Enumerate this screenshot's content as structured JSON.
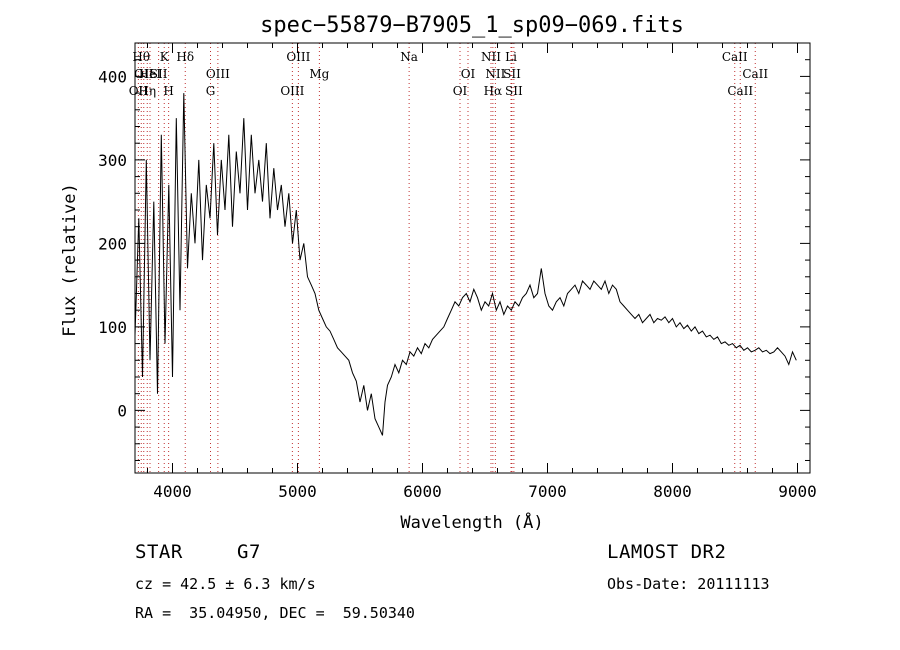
{
  "chart_data": {
    "type": "line",
    "title": "spec−55879−B7905_1_sp09−069.fits",
    "xlabel": "Wavelength (Å)",
    "ylabel": "Flux (relative)",
    "xlim": [
      3700,
      9100
    ],
    "ylim": [
      -75,
      440
    ],
    "x_ticks": [
      4000,
      5000,
      6000,
      7000,
      8000,
      9000
    ],
    "y_ticks": [
      0,
      100,
      200,
      300,
      400
    ],
    "grid": false,
    "series": [
      {
        "color": "#000000",
        "x": [
          3700,
          3730,
          3760,
          3790,
          3820,
          3850,
          3880,
          3910,
          3940,
          3970,
          4000,
          4030,
          4060,
          4090,
          4120,
          4150,
          4180,
          4210,
          4240,
          4270,
          4300,
          4330,
          4360,
          4390,
          4420,
          4450,
          4480,
          4510,
          4540,
          4570,
          4600,
          4630,
          4660,
          4690,
          4720,
          4750,
          4780,
          4810,
          4840,
          4870,
          4900,
          4930,
          4960,
          4990,
          5020,
          5050,
          5080,
          5110,
          5140,
          5170,
          5200,
          5230,
          5260,
          5290,
          5320,
          5350,
          5380,
          5410,
          5440,
          5470,
          5500,
          5530,
          5560,
          5590,
          5620,
          5650,
          5680,
          5700,
          5720,
          5750,
          5780,
          5810,
          5840,
          5870,
          5900,
          5930,
          5960,
          5990,
          6020,
          6050,
          6080,
          6110,
          6140,
          6170,
          6200,
          6230,
          6260,
          6290,
          6320,
          6350,
          6380,
          6410,
          6440,
          6470,
          6500,
          6530,
          6560,
          6590,
          6620,
          6650,
          6680,
          6710,
          6740,
          6770,
          6800,
          6830,
          6860,
          6890,
          6920,
          6950,
          6980,
          7010,
          7040,
          7070,
          7100,
          7130,
          7160,
          7190,
          7220,
          7250,
          7280,
          7310,
          7340,
          7370,
          7400,
          7430,
          7460,
          7490,
          7520,
          7550,
          7580,
          7610,
          7640,
          7670,
          7700,
          7730,
          7760,
          7790,
          7820,
          7850,
          7880,
          7910,
          7940,
          7970,
          8000,
          8030,
          8060,
          8090,
          8120,
          8150,
          8180,
          8210,
          8240,
          8270,
          8300,
          8330,
          8360,
          8390,
          8420,
          8450,
          8480,
          8510,
          8540,
          8570,
          8600,
          8630,
          8660,
          8690,
          8720,
          8750,
          8780,
          8810,
          8840,
          8870,
          8900,
          8930,
          8960,
          8990
        ],
        "y": [
          90,
          230,
          40,
          300,
          60,
          250,
          20,
          330,
          80,
          270,
          40,
          350,
          120,
          380,
          170,
          260,
          200,
          300,
          180,
          270,
          230,
          320,
          210,
          300,
          240,
          330,
          220,
          310,
          260,
          350,
          240,
          330,
          260,
          300,
          250,
          320,
          230,
          290,
          240,
          270,
          220,
          260,
          200,
          240,
          180,
          200,
          160,
          150,
          140,
          120,
          110,
          100,
          95,
          85,
          75,
          70,
          65,
          60,
          45,
          35,
          10,
          30,
          0,
          20,
          -10,
          -20,
          -30,
          10,
          30,
          40,
          55,
          45,
          60,
          55,
          70,
          65,
          75,
          68,
          80,
          75,
          85,
          90,
          95,
          100,
          110,
          120,
          130,
          125,
          135,
          140,
          130,
          145,
          135,
          120,
          130,
          125,
          140,
          120,
          130,
          115,
          125,
          120,
          130,
          125,
          135,
          140,
          150,
          135,
          140,
          170,
          140,
          125,
          120,
          130,
          135,
          125,
          140,
          145,
          150,
          140,
          155,
          150,
          145,
          155,
          150,
          145,
          155,
          140,
          150,
          145,
          130,
          125,
          120,
          115,
          110,
          115,
          105,
          110,
          115,
          105,
          110,
          108,
          112,
          105,
          110,
          100,
          105,
          98,
          102,
          95,
          100,
          92,
          95,
          88,
          90,
          85,
          88,
          80,
          82,
          78,
          80,
          75,
          78,
          72,
          75,
          70,
          72,
          75,
          70,
          72,
          68,
          70,
          75,
          70,
          65,
          55,
          70,
          60
        ]
      }
    ],
    "line_markers": {
      "color": "#c03030",
      "lines": [
        {
          "x": 3750,
          "label": "Hθ",
          "row": 0
        },
        {
          "x": 3727,
          "label": "OII",
          "row": 2
        },
        {
          "x": 3770,
          "label": "OII",
          "row": 1
        },
        {
          "x": 3798,
          "label": "Hη",
          "row": 2
        },
        {
          "x": 3820,
          "label": "HeI",
          "row": 1
        },
        {
          "x": 3889,
          "label": "SII",
          "row": 1
        },
        {
          "x": 3934,
          "label": "K",
          "row": 0
        },
        {
          "x": 3969,
          "label": "H",
          "row": 2
        },
        {
          "x": 4102,
          "label": "Hδ",
          "row": 0
        },
        {
          "x": 4304,
          "label": "G",
          "row": 2
        },
        {
          "x": 4363,
          "label": "OIII",
          "row": 1
        },
        {
          "x": 4959,
          "label": "OIII",
          "row": 2
        },
        {
          "x": 5007,
          "label": "OIII",
          "row": 0
        },
        {
          "x": 5175,
          "label": "Mg",
          "row": 1
        },
        {
          "x": 5893,
          "label": "Na",
          "row": 0
        },
        {
          "x": 6300,
          "label": "OI",
          "row": 2
        },
        {
          "x": 6364,
          "label": "OI",
          "row": 1
        },
        {
          "x": 6548,
          "label": "NII",
          "row": 0
        },
        {
          "x": 6563,
          "label": "Hα",
          "row": 2
        },
        {
          "x": 6583,
          "label": "NII",
          "row": 1
        },
        {
          "x": 6708,
          "label": "Li",
          "row": 0
        },
        {
          "x": 6716,
          "label": "SII",
          "row": 1
        },
        {
          "x": 6731,
          "label": "SII",
          "row": 2
        },
        {
          "x": 8498,
          "label": "CaII",
          "row": 0
        },
        {
          "x": 8542,
          "label": "CaII",
          "row": 2
        },
        {
          "x": 8662,
          "label": "CaII",
          "row": 1
        }
      ]
    }
  },
  "info": {
    "class": "STAR",
    "subclass": "G7",
    "survey": "LAMOST DR2",
    "cz": "cz = 42.5 ± 6.3 km/s",
    "obs_date": "Obs-Date: 20111113",
    "radec": "RA =  35.04950, DEC =  59.50340"
  }
}
